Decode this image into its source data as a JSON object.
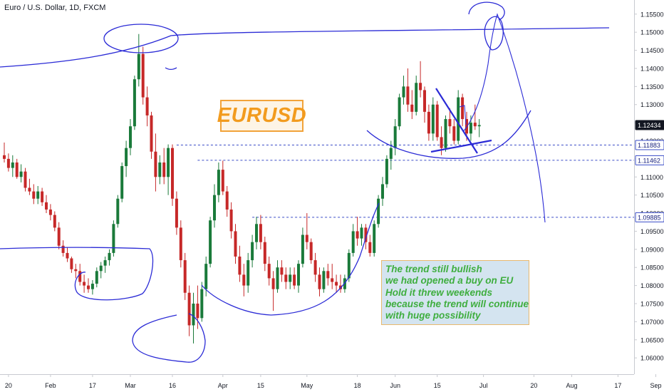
{
  "title": "Euro / U.S. Dollar, 1D, FXCM",
  "chart_data": {
    "type": "candlestick",
    "symbol": "EURUSD",
    "ylim": [
      1.0555,
      1.1589
    ],
    "y_ticks": [
      {
        "value": 1.06,
        "label": "1.06000"
      },
      {
        "value": 1.065,
        "label": "1.06500"
      },
      {
        "value": 1.07,
        "label": "1.07000"
      },
      {
        "value": 1.075,
        "label": "1.07500"
      },
      {
        "value": 1.08,
        "label": "1.08000"
      },
      {
        "value": 1.085,
        "label": "1.08500"
      },
      {
        "value": 1.09,
        "label": "1.09000"
      },
      {
        "value": 1.095,
        "label": "1.09500"
      },
      {
        "value": 1.1,
        "label": "1.10000"
      },
      {
        "value": 1.105,
        "label": "1.10500"
      },
      {
        "value": 1.11,
        "label": "1.11000"
      },
      {
        "value": 1.115,
        "label": "1.11500"
      },
      {
        "value": 1.12,
        "label": "1.12000"
      },
      {
        "value": 1.125,
        "label": "1.12500"
      },
      {
        "value": 1.13,
        "label": "1.13000"
      },
      {
        "value": 1.135,
        "label": "1.13500"
      },
      {
        "value": 1.14,
        "label": "1.14000"
      },
      {
        "value": 1.145,
        "label": "1.14500"
      },
      {
        "value": 1.15,
        "label": "1.15000"
      },
      {
        "value": 1.155,
        "label": "1.15500"
      }
    ],
    "x_ticks": [
      {
        "label": "20",
        "bar": 1
      },
      {
        "label": "Feb",
        "bar": 11
      },
      {
        "label": "17",
        "bar": 21
      },
      {
        "label": "Mar",
        "bar": 30
      },
      {
        "label": "16",
        "bar": 40
      },
      {
        "label": "Apr",
        "bar": 52
      },
      {
        "label": "15",
        "bar": 61
      },
      {
        "label": "May",
        "bar": 72
      },
      {
        "label": "18",
        "bar": 84
      },
      {
        "label": "Jun",
        "bar": 93
      },
      {
        "label": "15",
        "bar": 103
      },
      {
        "label": "Jul",
        "bar": 114
      },
      {
        "label": "20",
        "bar": 126
      },
      {
        "label": "Aug",
        "bar": 135
      },
      {
        "label": "17",
        "bar": 146
      },
      {
        "label": "Sep",
        "bar": 155
      }
    ],
    "price_labels": [
      {
        "value": 1.12434,
        "label": "1.12434",
        "style": "current"
      },
      {
        "value": 1.11883,
        "label": "1.11883",
        "style": "level"
      },
      {
        "value": 1.11462,
        "label": "1.11462",
        "style": "level"
      },
      {
        "value": 1.09885,
        "label": "1.09885",
        "style": "level"
      }
    ],
    "horizontal_levels": [
      {
        "value": 1.11883,
        "from_bar": 41
      },
      {
        "value": 1.11462,
        "from_bar": 46
      },
      {
        "value": 1.09885,
        "from_bar": 59
      }
    ],
    "candles": [
      {
        "bar": 0,
        "o": 1.116,
        "h": 1.1195,
        "l": 1.114,
        "c": 1.115
      },
      {
        "bar": 1,
        "o": 1.115,
        "h": 1.1165,
        "l": 1.1115,
        "c": 1.1125
      },
      {
        "bar": 2,
        "o": 1.1125,
        "h": 1.116,
        "l": 1.11,
        "c": 1.114
      },
      {
        "bar": 3,
        "o": 1.114,
        "h": 1.115,
        "l": 1.1095,
        "c": 1.11
      },
      {
        "bar": 4,
        "o": 1.11,
        "h": 1.1135,
        "l": 1.1085,
        "c": 1.1115
      },
      {
        "bar": 5,
        "o": 1.1115,
        "h": 1.1125,
        "l": 1.106,
        "c": 1.107
      },
      {
        "bar": 6,
        "o": 1.107,
        "h": 1.1095,
        "l": 1.105,
        "c": 1.106
      },
      {
        "bar": 7,
        "o": 1.106,
        "h": 1.108,
        "l": 1.1025,
        "c": 1.104
      },
      {
        "bar": 8,
        "o": 1.104,
        "h": 1.1075,
        "l": 1.1025,
        "c": 1.106
      },
      {
        "bar": 9,
        "o": 1.106,
        "h": 1.107,
        "l": 1.102,
        "c": 1.103
      },
      {
        "bar": 10,
        "o": 1.103,
        "h": 1.105,
        "l": 1.1,
        "c": 1.101
      },
      {
        "bar": 11,
        "o": 1.101,
        "h": 1.1025,
        "l": 1.098,
        "c": 1.0995
      },
      {
        "bar": 12,
        "o": 1.0995,
        "h": 1.1005,
        "l": 1.095,
        "c": 1.096
      },
      {
        "bar": 13,
        "o": 1.096,
        "h": 1.0975,
        "l": 1.09,
        "c": 1.091
      },
      {
        "bar": 14,
        "o": 1.091,
        "h": 1.0925,
        "l": 1.088,
        "c": 1.089
      },
      {
        "bar": 15,
        "o": 1.089,
        "h": 1.0905,
        "l": 1.0865,
        "c": 1.0875
      },
      {
        "bar": 16,
        "o": 1.0875,
        "h": 1.088,
        "l": 1.0835,
        "c": 1.0845
      },
      {
        "bar": 17,
        "o": 1.0845,
        "h": 1.086,
        "l": 1.082,
        "c": 1.084
      },
      {
        "bar": 18,
        "o": 1.084,
        "h": 1.086,
        "l": 1.08,
        "c": 1.081
      },
      {
        "bar": 19,
        "o": 1.081,
        "h": 1.083,
        "l": 1.078,
        "c": 1.08
      },
      {
        "bar": 20,
        "o": 1.08,
        "h": 1.082,
        "l": 1.078,
        "c": 1.079
      },
      {
        "bar": 21,
        "o": 1.079,
        "h": 1.0815,
        "l": 1.0775,
        "c": 1.0805
      },
      {
        "bar": 22,
        "o": 1.0805,
        "h": 1.085,
        "l": 1.0795,
        "c": 1.084
      },
      {
        "bar": 23,
        "o": 1.084,
        "h": 1.0865,
        "l": 1.082,
        "c": 1.0855
      },
      {
        "bar": 24,
        "o": 1.0855,
        "h": 1.088,
        "l": 1.0835,
        "c": 1.087
      },
      {
        "bar": 25,
        "o": 1.087,
        "h": 1.09,
        "l": 1.0855,
        "c": 1.089
      },
      {
        "bar": 26,
        "o": 1.089,
        "h": 1.098,
        "l": 1.088,
        "c": 1.097
      },
      {
        "bar": 27,
        "o": 1.097,
        "h": 1.105,
        "l": 1.096,
        "c": 1.104
      },
      {
        "bar": 28,
        "o": 1.104,
        "h": 1.114,
        "l": 1.103,
        "c": 1.113
      },
      {
        "bar": 29,
        "o": 1.113,
        "h": 1.12,
        "l": 1.11,
        "c": 1.118
      },
      {
        "bar": 30,
        "o": 1.118,
        "h": 1.126,
        "l": 1.116,
        "c": 1.124
      },
      {
        "bar": 31,
        "o": 1.124,
        "h": 1.138,
        "l": 1.123,
        "c": 1.137
      },
      {
        "bar": 32,
        "o": 1.137,
        "h": 1.1495,
        "l": 1.135,
        "c": 1.144
      },
      {
        "bar": 33,
        "o": 1.144,
        "h": 1.146,
        "l": 1.13,
        "c": 1.132
      },
      {
        "bar": 34,
        "o": 1.132,
        "h": 1.135,
        "l": 1.124,
        "c": 1.127
      },
      {
        "bar": 35,
        "o": 1.127,
        "h": 1.128,
        "l": 1.115,
        "c": 1.117
      },
      {
        "bar": 36,
        "o": 1.117,
        "h": 1.122,
        "l": 1.106,
        "c": 1.11
      },
      {
        "bar": 37,
        "o": 1.11,
        "h": 1.116,
        "l": 1.108,
        "c": 1.114
      },
      {
        "bar": 38,
        "o": 1.114,
        "h": 1.118,
        "l": 1.108,
        "c": 1.11
      },
      {
        "bar": 39,
        "o": 1.11,
        "h": 1.119,
        "l": 1.105,
        "c": 1.118
      },
      {
        "bar": 40,
        "o": 1.118,
        "h": 1.119,
        "l": 1.102,
        "c": 1.104
      },
      {
        "bar": 41,
        "o": 1.104,
        "h": 1.106,
        "l": 1.094,
        "c": 1.096
      },
      {
        "bar": 42,
        "o": 1.096,
        "h": 1.098,
        "l": 1.085,
        "c": 1.087
      },
      {
        "bar": 43,
        "o": 1.087,
        "h": 1.089,
        "l": 1.076,
        "c": 1.078
      },
      {
        "bar": 44,
        "o": 1.078,
        "h": 1.08,
        "l": 1.066,
        "c": 1.069
      },
      {
        "bar": 45,
        "o": 1.069,
        "h": 1.078,
        "l": 1.064,
        "c": 1.075
      },
      {
        "bar": 46,
        "o": 1.075,
        "h": 1.08,
        "l": 1.068,
        "c": 1.071
      },
      {
        "bar": 47,
        "o": 1.071,
        "h": 1.081,
        "l": 1.07,
        "c": 1.079
      },
      {
        "bar": 48,
        "o": 1.079,
        "h": 1.088,
        "l": 1.077,
        "c": 1.086
      },
      {
        "bar": 49,
        "o": 1.086,
        "h": 1.099,
        "l": 1.085,
        "c": 1.098
      },
      {
        "bar": 50,
        "o": 1.098,
        "h": 1.108,
        "l": 1.096,
        "c": 1.105
      },
      {
        "bar": 51,
        "o": 1.105,
        "h": 1.114,
        "l": 1.103,
        "c": 1.112
      },
      {
        "bar": 52,
        "o": 1.112,
        "h": 1.1145,
        "l": 1.105,
        "c": 1.106
      },
      {
        "bar": 53,
        "o": 1.106,
        "h": 1.1075,
        "l": 1.099,
        "c": 1.101
      },
      {
        "bar": 54,
        "o": 1.101,
        "h": 1.103,
        "l": 1.093,
        "c": 1.095
      },
      {
        "bar": 55,
        "o": 1.095,
        "h": 1.097,
        "l": 1.086,
        "c": 1.088
      },
      {
        "bar": 56,
        "o": 1.088,
        "h": 1.091,
        "l": 1.081,
        "c": 1.083
      },
      {
        "bar": 57,
        "o": 1.083,
        "h": 1.086,
        "l": 1.077,
        "c": 1.08
      },
      {
        "bar": 58,
        "o": 1.08,
        "h": 1.089,
        "l": 1.078,
        "c": 1.087
      },
      {
        "bar": 59,
        "o": 1.087,
        "h": 1.094,
        "l": 1.085,
        "c": 1.092
      },
      {
        "bar": 60,
        "o": 1.092,
        "h": 1.099,
        "l": 1.09,
        "c": 1.097
      },
      {
        "bar": 61,
        "o": 1.097,
        "h": 1.0995,
        "l": 1.09,
        "c": 1.092
      },
      {
        "bar": 62,
        "o": 1.092,
        "h": 1.0935,
        "l": 1.084,
        "c": 1.086
      },
      {
        "bar": 63,
        "o": 1.086,
        "h": 1.088,
        "l": 1.08,
        "c": 1.082
      },
      {
        "bar": 64,
        "o": 1.082,
        "h": 1.084,
        "l": 1.073,
        "c": 1.079
      },
      {
        "bar": 65,
        "o": 1.079,
        "h": 1.087,
        "l": 1.078,
        "c": 1.085
      },
      {
        "bar": 66,
        "o": 1.085,
        "h": 1.087,
        "l": 1.081,
        "c": 1.083
      },
      {
        "bar": 67,
        "o": 1.083,
        "h": 1.085,
        "l": 1.079,
        "c": 1.081
      },
      {
        "bar": 68,
        "o": 1.081,
        "h": 1.085,
        "l": 1.079,
        "c": 1.083
      },
      {
        "bar": 69,
        "o": 1.083,
        "h": 1.085,
        "l": 1.079,
        "c": 1.08
      },
      {
        "bar": 70,
        "o": 1.08,
        "h": 1.087,
        "l": 1.078,
        "c": 1.086
      },
      {
        "bar": 71,
        "o": 1.086,
        "h": 1.096,
        "l": 1.085,
        "c": 1.094
      },
      {
        "bar": 72,
        "o": 1.094,
        "h": 1.1,
        "l": 1.09,
        "c": 1.092
      },
      {
        "bar": 73,
        "o": 1.092,
        "h": 1.093,
        "l": 1.086,
        "c": 1.087
      },
      {
        "bar": 74,
        "o": 1.087,
        "h": 1.089,
        "l": 1.081,
        "c": 1.083
      },
      {
        "bar": 75,
        "o": 1.083,
        "h": 1.085,
        "l": 1.077,
        "c": 1.079
      },
      {
        "bar": 76,
        "o": 1.079,
        "h": 1.085,
        "l": 1.078,
        "c": 1.084
      },
      {
        "bar": 77,
        "o": 1.084,
        "h": 1.086,
        "l": 1.08,
        "c": 1.082
      },
      {
        "bar": 78,
        "o": 1.082,
        "h": 1.086,
        "l": 1.079,
        "c": 1.081
      },
      {
        "bar": 79,
        "o": 1.081,
        "h": 1.083,
        "l": 1.078,
        "c": 1.08
      },
      {
        "bar": 80,
        "o": 1.08,
        "h": 1.083,
        "l": 1.078,
        "c": 1.079
      },
      {
        "bar": 81,
        "o": 1.079,
        "h": 1.083,
        "l": 1.078,
        "c": 1.082
      },
      {
        "bar": 82,
        "o": 1.082,
        "h": 1.09,
        "l": 1.081,
        "c": 1.089
      },
      {
        "bar": 83,
        "o": 1.089,
        "h": 1.097,
        "l": 1.088,
        "c": 1.095
      },
      {
        "bar": 84,
        "o": 1.095,
        "h": 1.099,
        "l": 1.091,
        "c": 1.093
      },
      {
        "bar": 85,
        "o": 1.093,
        "h": 1.097,
        "l": 1.091,
        "c": 1.096
      },
      {
        "bar": 86,
        "o": 1.096,
        "h": 1.097,
        "l": 1.09,
        "c": 1.092
      },
      {
        "bar": 87,
        "o": 1.092,
        "h": 1.094,
        "l": 1.088,
        "c": 1.089
      },
      {
        "bar": 88,
        "o": 1.089,
        "h": 1.098,
        "l": 1.088,
        "c": 1.097
      },
      {
        "bar": 89,
        "o": 1.097,
        "h": 1.105,
        "l": 1.096,
        "c": 1.104
      },
      {
        "bar": 90,
        "o": 1.104,
        "h": 1.11,
        "l": 1.102,
        "c": 1.108
      },
      {
        "bar": 91,
        "o": 1.108,
        "h": 1.116,
        "l": 1.107,
        "c": 1.115
      },
      {
        "bar": 92,
        "o": 1.115,
        "h": 1.12,
        "l": 1.112,
        "c": 1.118
      },
      {
        "bar": 93,
        "o": 1.118,
        "h": 1.126,
        "l": 1.116,
        "c": 1.124
      },
      {
        "bar": 94,
        "o": 1.124,
        "h": 1.133,
        "l": 1.123,
        "c": 1.132
      },
      {
        "bar": 95,
        "o": 1.132,
        "h": 1.138,
        "l": 1.13,
        "c": 1.135
      },
      {
        "bar": 96,
        "o": 1.135,
        "h": 1.14,
        "l": 1.128,
        "c": 1.13
      },
      {
        "bar": 97,
        "o": 1.13,
        "h": 1.134,
        "l": 1.126,
        "c": 1.128
      },
      {
        "bar": 98,
        "o": 1.128,
        "h": 1.138,
        "l": 1.127,
        "c": 1.136
      },
      {
        "bar": 99,
        "o": 1.136,
        "h": 1.142,
        "l": 1.132,
        "c": 1.134
      },
      {
        "bar": 100,
        "o": 1.134,
        "h": 1.135,
        "l": 1.125,
        "c": 1.128
      },
      {
        "bar": 101,
        "o": 1.128,
        "h": 1.13,
        "l": 1.12,
        "c": 1.122
      },
      {
        "bar": 102,
        "o": 1.122,
        "h": 1.132,
        "l": 1.12,
        "c": 1.13
      },
      {
        "bar": 103,
        "o": 1.13,
        "h": 1.131,
        "l": 1.12,
        "c": 1.121
      },
      {
        "bar": 104,
        "o": 1.121,
        "h": 1.124,
        "l": 1.116,
        "c": 1.118
      },
      {
        "bar": 105,
        "o": 1.118,
        "h": 1.127,
        "l": 1.117,
        "c": 1.126
      },
      {
        "bar": 106,
        "o": 1.126,
        "h": 1.129,
        "l": 1.122,
        "c": 1.124
      },
      {
        "bar": 107,
        "o": 1.124,
        "h": 1.126,
        "l": 1.119,
        "c": 1.12
      },
      {
        "bar": 108,
        "o": 1.12,
        "h": 1.134,
        "l": 1.119,
        "c": 1.132
      },
      {
        "bar": 109,
        "o": 1.132,
        "h": 1.133,
        "l": 1.124,
        "c": 1.126
      },
      {
        "bar": 110,
        "o": 1.126,
        "h": 1.128,
        "l": 1.12,
        "c": 1.122
      },
      {
        "bar": 111,
        "o": 1.122,
        "h": 1.127,
        "l": 1.12,
        "c": 1.125
      },
      {
        "bar": 112,
        "o": 1.125,
        "h": 1.13,
        "l": 1.123,
        "c": 1.124
      },
      {
        "bar": 113,
        "o": 1.124,
        "h": 1.126,
        "l": 1.121,
        "c": 1.12434
      }
    ]
  },
  "annotations": {
    "symbol_box": "EURUSD",
    "note_lines": [
      "The trend still bullish",
      "we had opened a buy on EU",
      "Hold it threw weekends",
      "because the trend will continue",
      "with huge possibility"
    ],
    "colors": {
      "up": "#26a69a",
      "up_body": "#1a7a3a",
      "down": "#c62828",
      "drawing": "#2b2bd6",
      "level_line": "#3a4cc7",
      "symbol_box_text": "#f29b1e",
      "note_text": "#3fae3f"
    }
  }
}
